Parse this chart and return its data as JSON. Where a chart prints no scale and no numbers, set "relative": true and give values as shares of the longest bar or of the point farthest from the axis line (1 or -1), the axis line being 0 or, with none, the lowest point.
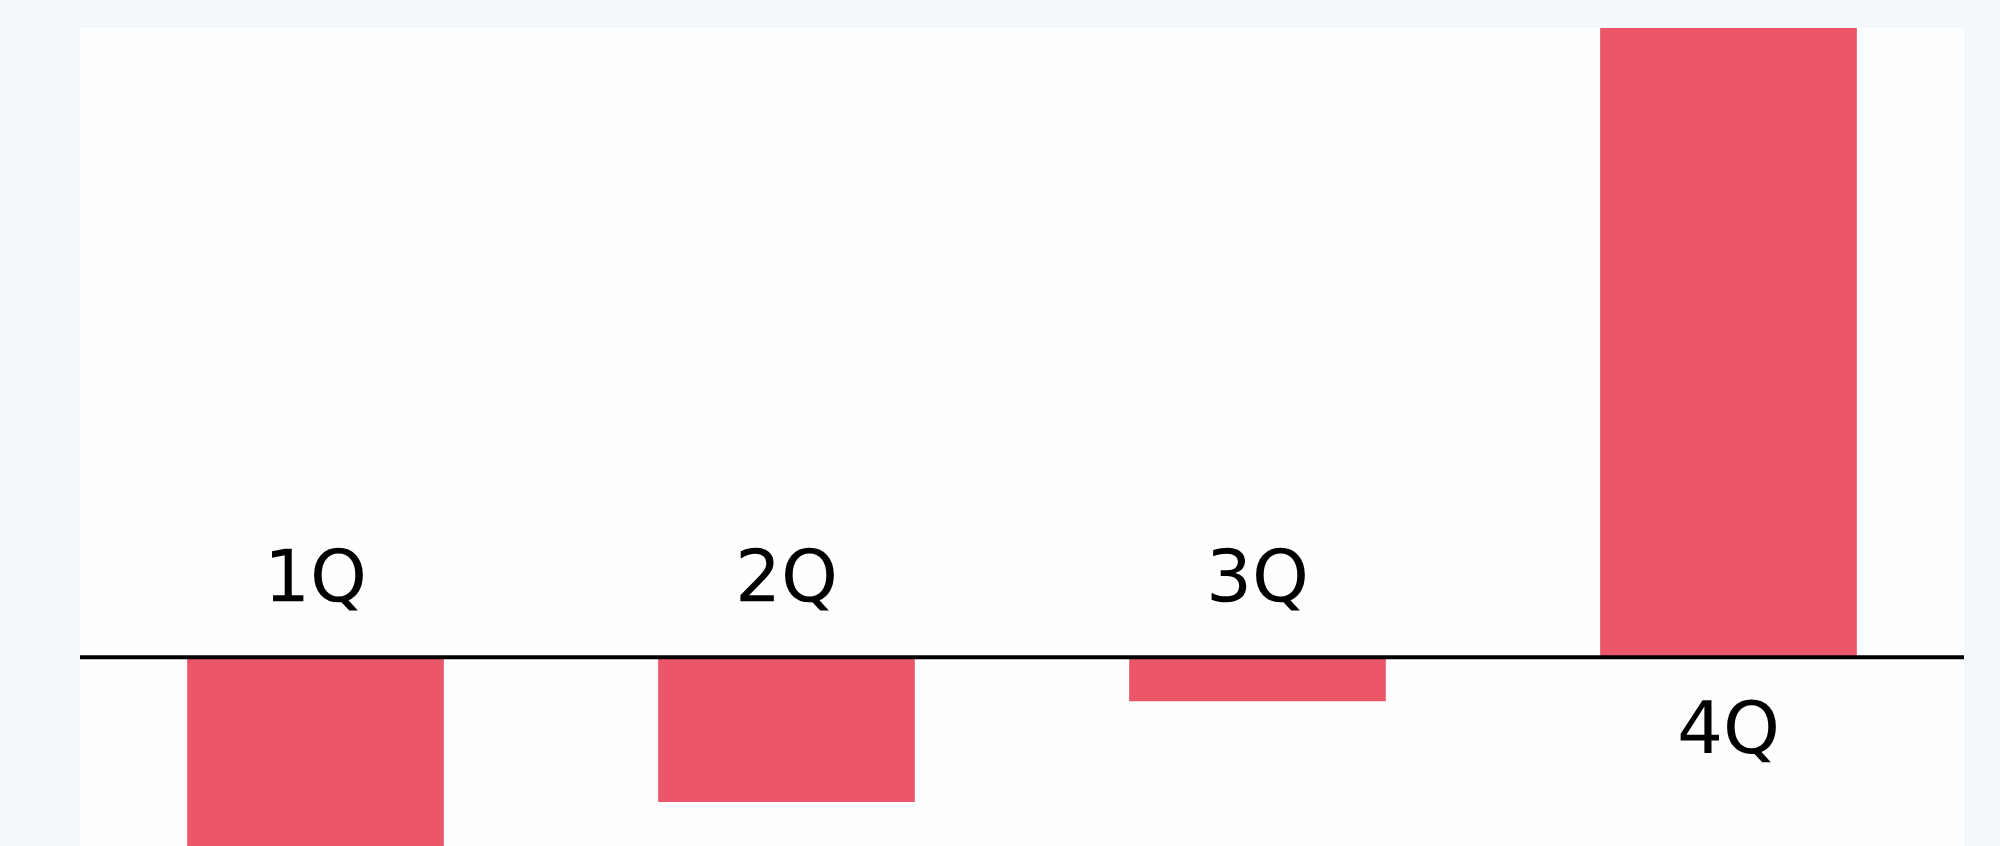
{
  "chart_data": {
    "type": "bar",
    "relative": true,
    "categories": [
      "1Q",
      "2Q",
      "3Q",
      "4Q"
    ],
    "values": [
      -0.3,
      -0.23,
      -0.07,
      1.0
    ],
    "color": "#eb5768"
  }
}
